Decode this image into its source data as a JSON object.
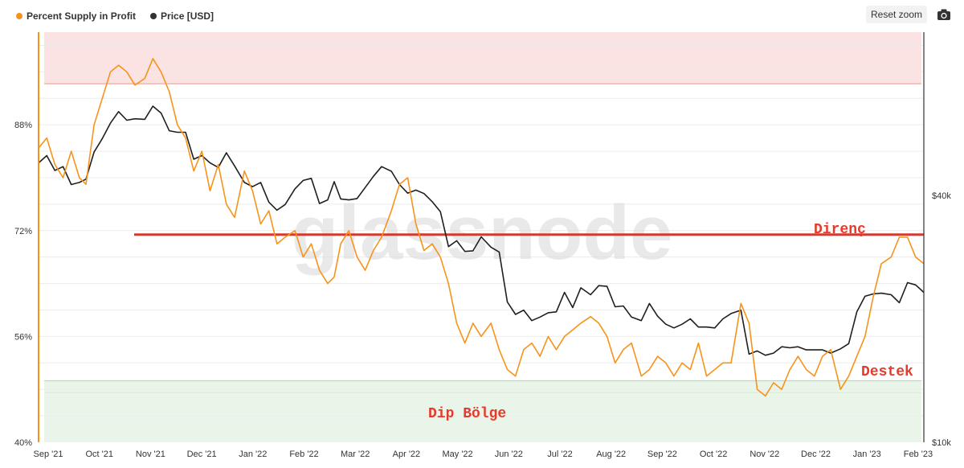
{
  "legend": {
    "items": [
      {
        "label": "Percent Supply in Profit",
        "color": "#f7931a"
      },
      {
        "label": "Price [USD]",
        "color": "#333333"
      }
    ]
  },
  "toolbar": {
    "reset_label": "Reset zoom",
    "camera_icon": "camera-icon"
  },
  "watermark": "glassnode",
  "annotations": {
    "resistance": "Direnç",
    "support": "Destek",
    "bottom_zone": "Dip Bölge"
  },
  "chart_data": {
    "type": "line",
    "x_tick_labels": [
      "Sep '21",
      "Oct '21",
      "Nov '21",
      "Dec '21",
      "Jan '22",
      "Feb '22",
      "Mar '22",
      "Apr '22",
      "May '22",
      "Jun '22",
      "Jul '22",
      "Aug '22",
      "Sep '22",
      "Oct '22",
      "Nov '22",
      "Dec '22",
      "Jan '23",
      "Feb '23"
    ],
    "y_left_tick_labels": [
      "40%",
      "56%",
      "72%",
      "88%"
    ],
    "y_left_ticks": [
      40,
      56,
      72,
      88
    ],
    "y_left_range": [
      40,
      102
    ],
    "y_right_tick_labels": [
      "$10k",
      "$40k"
    ],
    "y_right_ticks": [
      10000,
      40000
    ],
    "y_right_scale": "log",
    "y_right_range": [
      10000,
      100000
    ],
    "x_range": [
      "2021-09-01",
      "2023-02-25"
    ],
    "levels": {
      "top_zone_lower": 94.2,
      "resistance": 71.4,
      "support": 49.3,
      "support_band_lower": 47.5
    },
    "colors": {
      "supply": "#f7931a",
      "price": "#1f1f1f",
      "resistance_line": "#d63a2f",
      "top_zone": "#fbe3e3",
      "bottom_zone": "#eaf5ea"
    },
    "series": [
      {
        "name": "Percent Supply in Profit",
        "axis": "left",
        "x": [
          "2021-09-01",
          "2021-09-06",
          "2021-09-11",
          "2021-09-16",
          "2021-09-21",
          "2021-09-26",
          "2021-09-30",
          "2021-10-05",
          "2021-10-10",
          "2021-10-15",
          "2021-10-20",
          "2021-10-25",
          "2021-10-30",
          "2021-11-05",
          "2021-11-10",
          "2021-11-15",
          "2021-11-20",
          "2021-11-25",
          "2021-11-30",
          "2021-12-05",
          "2021-12-10",
          "2021-12-15",
          "2021-12-20",
          "2021-12-25",
          "2021-12-30",
          "2022-01-05",
          "2022-01-10",
          "2022-01-15",
          "2022-01-20",
          "2022-01-25",
          "2022-01-30",
          "2022-02-05",
          "2022-02-10",
          "2022-02-15",
          "2022-02-20",
          "2022-02-25",
          "2022-03-01",
          "2022-03-05",
          "2022-03-10",
          "2022-03-15",
          "2022-03-20",
          "2022-03-25",
          "2022-03-30",
          "2022-04-05",
          "2022-04-10",
          "2022-04-15",
          "2022-04-20",
          "2022-04-25",
          "2022-04-30",
          "2022-05-05",
          "2022-05-10",
          "2022-05-15",
          "2022-05-20",
          "2022-05-25",
          "2022-05-30",
          "2022-06-05",
          "2022-06-10",
          "2022-06-15",
          "2022-06-20",
          "2022-06-25",
          "2022-06-30",
          "2022-07-05",
          "2022-07-10",
          "2022-07-15",
          "2022-07-20",
          "2022-07-25",
          "2022-07-30",
          "2022-08-05",
          "2022-08-10",
          "2022-08-15",
          "2022-08-20",
          "2022-08-25",
          "2022-08-30",
          "2022-09-05",
          "2022-09-10",
          "2022-09-15",
          "2022-09-20",
          "2022-09-25",
          "2022-09-30",
          "2022-10-05",
          "2022-10-10",
          "2022-10-15",
          "2022-10-20",
          "2022-10-25",
          "2022-10-30",
          "2022-11-05",
          "2022-11-10",
          "2022-11-15",
          "2022-11-20",
          "2022-11-25",
          "2022-11-30",
          "2022-12-05",
          "2022-12-10",
          "2022-12-15",
          "2022-12-20",
          "2022-12-25",
          "2022-12-30",
          "2023-01-05",
          "2023-01-10",
          "2023-01-15",
          "2023-01-20",
          "2023-01-25",
          "2023-01-30",
          "2023-02-05",
          "2023-02-10",
          "2023-02-15",
          "2023-02-20",
          "2023-02-25"
        ],
        "values": [
          84.5,
          86,
          82,
          80,
          84,
          80,
          79,
          88,
          92,
          96,
          97,
          96,
          94,
          95,
          98,
          96,
          93,
          88,
          86,
          81,
          84,
          78,
          82,
          76,
          74,
          81,
          78,
          73,
          75,
          70,
          71,
          72,
          68,
          70,
          66,
          64,
          65,
          70,
          72,
          68,
          66,
          69,
          71,
          75,
          79,
          80,
          73,
          69,
          70,
          68,
          64,
          58,
          55,
          58,
          56,
          58,
          54,
          51,
          50,
          54,
          55,
          53,
          56,
          54,
          56,
          57,
          58,
          59,
          58,
          56,
          52,
          54,
          55,
          50,
          51,
          53,
          52,
          50,
          52,
          51,
          55,
          50,
          51,
          52,
          52,
          61,
          58,
          48,
          47,
          49,
          48,
          51,
          53,
          51,
          50,
          53,
          54,
          48,
          50,
          53,
          56,
          62,
          67,
          68,
          71,
          71,
          68,
          67
        ]
      },
      {
        "name": "Price [USD]",
        "axis": "right",
        "x": [
          "2021-09-01",
          "2021-09-06",
          "2021-09-11",
          "2021-09-16",
          "2021-09-21",
          "2021-09-26",
          "2021-09-30",
          "2021-10-05",
          "2021-10-10",
          "2021-10-15",
          "2021-10-20",
          "2021-10-25",
          "2021-10-30",
          "2021-11-05",
          "2021-11-10",
          "2021-11-15",
          "2021-11-20",
          "2021-11-25",
          "2021-11-30",
          "2021-12-05",
          "2021-12-10",
          "2021-12-15",
          "2021-12-20",
          "2021-12-25",
          "2021-12-30",
          "2022-01-05",
          "2022-01-10",
          "2022-01-15",
          "2022-01-20",
          "2022-01-25",
          "2022-01-30",
          "2022-02-05",
          "2022-02-10",
          "2022-02-15",
          "2022-02-20",
          "2022-02-25",
          "2022-03-01",
          "2022-03-05",
          "2022-03-10",
          "2022-03-15",
          "2022-03-20",
          "2022-03-25",
          "2022-03-30",
          "2022-04-05",
          "2022-04-10",
          "2022-04-15",
          "2022-04-20",
          "2022-04-25",
          "2022-04-30",
          "2022-05-05",
          "2022-05-10",
          "2022-05-15",
          "2022-05-20",
          "2022-05-25",
          "2022-05-30",
          "2022-06-05",
          "2022-06-10",
          "2022-06-15",
          "2022-06-20",
          "2022-06-25",
          "2022-06-30",
          "2022-07-05",
          "2022-07-10",
          "2022-07-15",
          "2022-07-20",
          "2022-07-25",
          "2022-07-30",
          "2022-08-05",
          "2022-08-10",
          "2022-08-15",
          "2022-08-20",
          "2022-08-25",
          "2022-08-30",
          "2022-09-05",
          "2022-09-10",
          "2022-09-15",
          "2022-09-20",
          "2022-09-25",
          "2022-09-30",
          "2022-10-05",
          "2022-10-10",
          "2022-10-15",
          "2022-10-20",
          "2022-10-25",
          "2022-10-30",
          "2022-11-05",
          "2022-11-10",
          "2022-11-15",
          "2022-11-20",
          "2022-11-25",
          "2022-11-30",
          "2022-12-05",
          "2022-12-10",
          "2022-12-15",
          "2022-12-20",
          "2022-12-25",
          "2022-12-30",
          "2023-01-05",
          "2023-01-10",
          "2023-01-15",
          "2023-01-20",
          "2023-01-25",
          "2023-01-30",
          "2023-02-05",
          "2023-02-10",
          "2023-02-15",
          "2023-02-20",
          "2023-02-25"
        ],
        "values": [
          48000,
          50000,
          46000,
          47000,
          42500,
          43000,
          43800,
          51000,
          55000,
          60000,
          64000,
          61000,
          61500,
          61300,
          66000,
          63500,
          57500,
          57000,
          57000,
          49000,
          50000,
          48000,
          46800,
          50800,
          47200,
          43000,
          42000,
          43000,
          38500,
          36800,
          38000,
          41500,
          43500,
          44000,
          38200,
          39000,
          43200,
          39200,
          39000,
          39300,
          41800,
          44500,
          47000,
          45800,
          42500,
          40500,
          41200,
          40400,
          38600,
          36500,
          30000,
          31000,
          29200,
          29300,
          31700,
          29900,
          29100,
          22000,
          20500,
          21000,
          19800,
          20200,
          20700,
          20800,
          23200,
          21300,
          23800,
          22900,
          24100,
          24000,
          21400,
          21500,
          20200,
          19800,
          21800,
          20300,
          19400,
          19000,
          19400,
          20000,
          19100,
          19100,
          19000,
          20000,
          20600,
          21000,
          16400,
          16700,
          16300,
          16500,
          17100,
          17000,
          17100,
          16800,
          16800,
          16800,
          16500,
          16900,
          17400,
          20800,
          22700,
          23000,
          23100,
          22900,
          21900,
          24500,
          24200,
          23200
        ]
      }
    ]
  }
}
